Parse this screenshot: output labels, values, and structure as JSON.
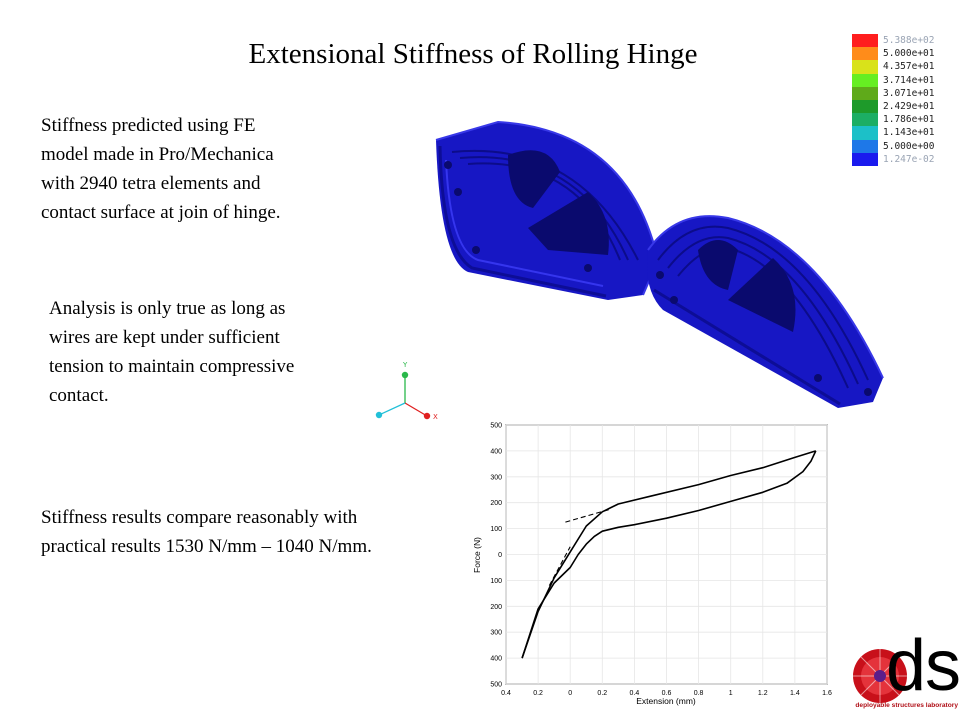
{
  "title": "Extensional  Stiffness of Rolling Hinge",
  "paragraphs": {
    "fe_model": [
      "Stiffness predicted using FE",
      "model made in Pro/Mechanica",
      "with 2940 tetra elements and",
      "contact surface at join of hinge."
    ],
    "analysis": [
      "Analysis is only true as long as",
      "wires are kept under sufficient",
      "tension to maintain compressive",
      "contact."
    ],
    "results": [
      "Stiffness results compare reasonably with",
      "practical results 1530 N/mm – 1040 N/mm."
    ]
  },
  "legend": {
    "entries": [
      {
        "label": "5.388e+02",
        "color": "#ff1e1e",
        "faint": true
      },
      {
        "label": "5.000e+01",
        "color": "#ff8c1a"
      },
      {
        "label": "4.357e+01",
        "color": "#d9e21a"
      },
      {
        "label": "3.714e+01",
        "color": "#66ee22"
      },
      {
        "label": "3.071e+01",
        "color": "#5faa1a"
      },
      {
        "label": "2.429e+01",
        "color": "#1e9a2a"
      },
      {
        "label": "1.786e+01",
        "color": "#1cae64"
      },
      {
        "label": "1.143e+01",
        "color": "#1cc0c8"
      },
      {
        "label": "5.000e+00",
        "color": "#1e78e8"
      },
      {
        "label": "1.247e-02",
        "color": "#1a1aee",
        "faint": true
      }
    ]
  },
  "triad": {
    "y_label": "Y",
    "x_label": "X"
  },
  "chart_data": {
    "type": "line",
    "xlabel": "Extension (mm)",
    "ylabel": "Force (N)",
    "xlim": [
      -0.4,
      1.6
    ],
    "ylim": [
      -500,
      500
    ],
    "x_ticks": [
      "0.4",
      "0.2",
      "0",
      "0.2",
      "0.4",
      "0.6",
      "0.8",
      "1",
      "1.2",
      "1.4",
      "1.6"
    ],
    "y_ticks": [
      "500",
      "400",
      "300",
      "200",
      "100",
      "0",
      "100",
      "200",
      "300",
      "400",
      "500"
    ],
    "series": [
      {
        "style": "solid",
        "x": [
          -0.3,
          -0.2,
          -0.1,
          0.0,
          0.1,
          0.2,
          0.25,
          0.3,
          0.5,
          0.8,
          1.0,
          1.2,
          1.4,
          1.53
        ],
        "y": [
          -400,
          -220,
          -90,
          10,
          110,
          165,
          180,
          195,
          225,
          270,
          305,
          335,
          375,
          400
        ]
      },
      {
        "style": "solid",
        "x": [
          1.53,
          1.5,
          1.45,
          1.35,
          1.2,
          1.0,
          0.8,
          0.6,
          0.4,
          0.3,
          0.2,
          0.15,
          0.1,
          0.05,
          0.0,
          -0.1,
          -0.2,
          -0.3
        ],
        "y": [
          400,
          360,
          320,
          275,
          240,
          205,
          170,
          140,
          115,
          105,
          90,
          70,
          40,
          0,
          -50,
          -110,
          -210,
          -400
        ]
      },
      {
        "style": "dashed",
        "x": [
          -0.13,
          0.0
        ],
        "y": [
          -120,
          30
        ]
      },
      {
        "style": "dashed",
        "x": [
          -0.03,
          0.25
        ],
        "y": [
          125,
          175
        ]
      }
    ]
  },
  "logo": {
    "text": "dsl",
    "subtitle": "deployable structures laboratory"
  }
}
